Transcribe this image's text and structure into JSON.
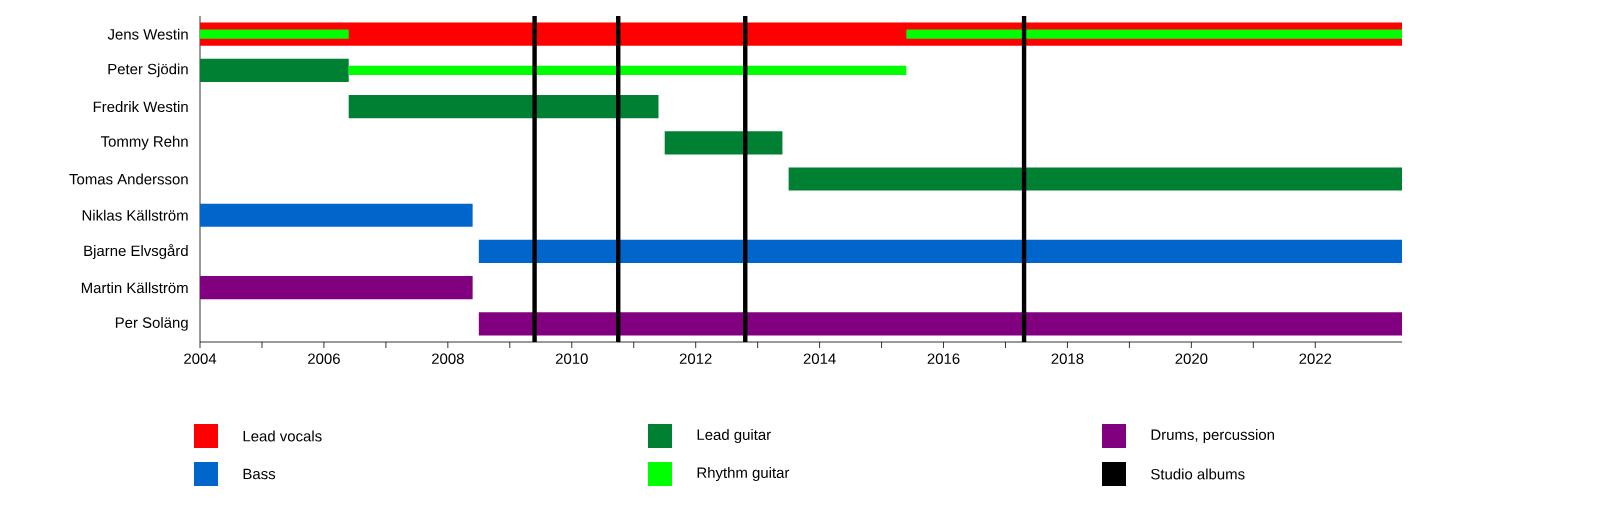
{
  "chart_data": {
    "type": "bar",
    "orientation": "horizontal",
    "categories": [
      "Jens Westin",
      "Peter Sjödin",
      "Fredrik Westin",
      "Tommy Rehn",
      "Tomas Andersson",
      "Niklas Källström",
      "Bjarne Elvsgård",
      "Martin Källström",
      "Per Soläng"
    ],
    "series": [
      {
        "name": "Lead vocals",
        "color": "#ff0000",
        "values": [
          19.4,
          null,
          null,
          null,
          null,
          null,
          null,
          null,
          null
        ],
        "base": [
          2004,
          null,
          null,
          null,
          null,
          null,
          null,
          null,
          null
        ]
      },
      {
        "name": "Bass",
        "color": "#0066cc",
        "values": [
          null,
          null,
          null,
          null,
          null,
          4.4,
          14.9,
          null,
          null
        ],
        "base": [
          null,
          null,
          null,
          null,
          null,
          2004,
          2008.5,
          null,
          null
        ]
      },
      {
        "name": "Lead guitar",
        "color": "#008033",
        "values": [
          null,
          2.4,
          5.0,
          1.9,
          9.9,
          null,
          null,
          null,
          null
        ],
        "base": [
          null,
          2004,
          2006.4,
          2011.5,
          2013.5,
          null,
          null,
          null,
          null
        ]
      },
      {
        "name": "Rhythm guitar",
        "color": "#00ff00",
        "values": [
          2.4,
          9.0,
          null,
          null,
          null,
          null,
          null,
          null,
          null
        ],
        "base": [
          2004,
          2006.4,
          null,
          null,
          null,
          null,
          null,
          null,
          null
        ]
      },
      {
        "name": "Drums, percussion",
        "color": "#800080",
        "values": [
          null,
          null,
          null,
          null,
          null,
          null,
          null,
          4.4,
          14.9
        ],
        "base": [
          null,
          null,
          null,
          null,
          null,
          null,
          null,
          2004,
          2008.5
        ]
      },
      {
        "color": "#00ff00",
        "values": [
          8.0,
          null,
          null,
          null,
          null,
          null,
          null,
          null,
          null
        ],
        "base": [
          2015.4,
          null,
          null,
          null,
          null,
          null,
          null,
          null,
          null
        ]
      }
    ],
    "xlim": [
      2004,
      2023.4
    ],
    "xticks": [
      2004,
      {
        "value": 2005,
        "label": null
      },
      2006,
      {
        "value": 2007,
        "label": null
      },
      2008,
      {
        "value": 2009,
        "label": null
      },
      2010,
      {
        "value": 2011,
        "label": null
      },
      2012,
      {
        "value": 2013,
        "label": null
      },
      2014,
      {
        "value": 2015,
        "label": null
      },
      2016,
      {
        "value": 2017,
        "label": null
      },
      2018,
      {
        "value": 2019,
        "label": null
      },
      2020,
      {
        "value": 2021,
        "label": null
      },
      2022
    ],
    "ref_lines": [
      {
        "axis": "x",
        "value": 2009.4,
        "color": "#000000",
        "label": "Studio albums"
      },
      {
        "axis": "x",
        "value": 2010.75,
        "color": "#000000"
      },
      {
        "axis": "x",
        "value": 2012.8,
        "color": "#000000"
      },
      {
        "axis": "x",
        "value": 2017.3,
        "color": "#000000"
      }
    ],
    "legend": "bottom"
  }
}
